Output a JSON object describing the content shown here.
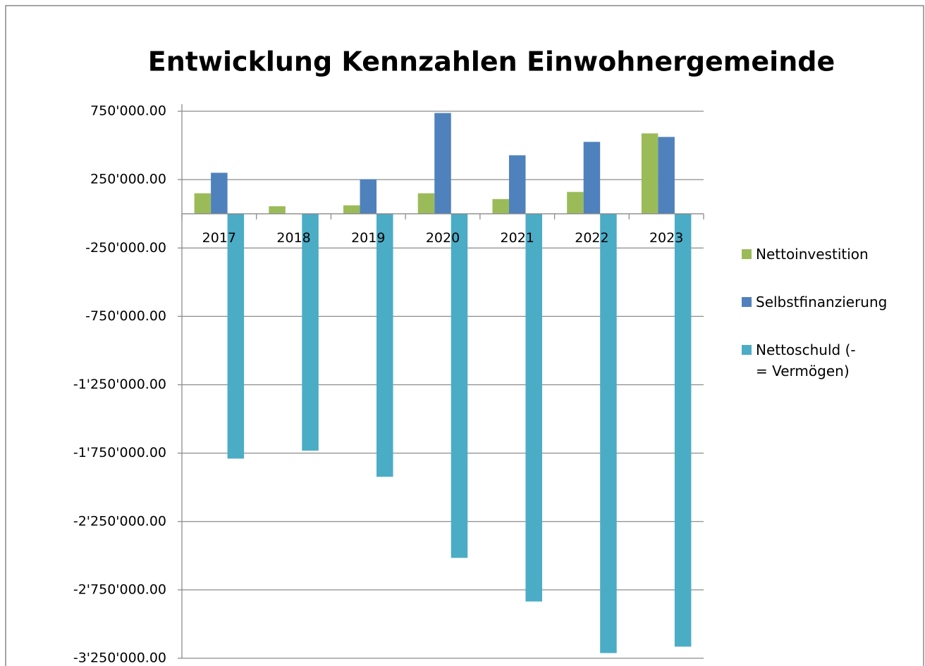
{
  "chart_data": {
    "type": "bar",
    "title": "Entwicklung Kennzahlen Einwohnergemeinde",
    "categories": [
      "2017",
      "2018",
      "2019",
      "2020",
      "2021",
      "2022",
      "2023"
    ],
    "series": [
      {
        "name": "Nettoinvestition",
        "color": "#9bbb59",
        "values": [
          150000,
          55000,
          62000,
          150000,
          108000,
          160000,
          588000
        ]
      },
      {
        "name": "Selbstfinanzierung",
        "color": "#4f81bd",
        "values": [
          300000,
          0,
          253000,
          737000,
          428000,
          526000,
          562000
        ]
      },
      {
        "name": "Nettoschuld (- = Vermögen)",
        "color": "#4bacc6",
        "values": [
          -1790000,
          -1732000,
          -1923000,
          -2516000,
          -2835000,
          -3212000,
          -3165000
        ]
      }
    ],
    "ylim": [
      -3250000,
      750000
    ],
    "yticks": [
      {
        "value": 750000,
        "label": "750'000.00"
      },
      {
        "value": 250000,
        "label": "250'000.00"
      },
      {
        "value": -250000,
        "label": "-250'000.00"
      },
      {
        "value": -750000,
        "label": "-750'000.00"
      },
      {
        "value": -1250000,
        "label": "-1'250'000.00"
      },
      {
        "value": -1750000,
        "label": "-1'750'000.00"
      },
      {
        "value": -2250000,
        "label": "-2'250'000.00"
      },
      {
        "value": -2750000,
        "label": "-2'750'000.00"
      },
      {
        "value": -3250000,
        "label": "-3'250'000.00"
      }
    ],
    "grid": true,
    "legend": "right"
  }
}
